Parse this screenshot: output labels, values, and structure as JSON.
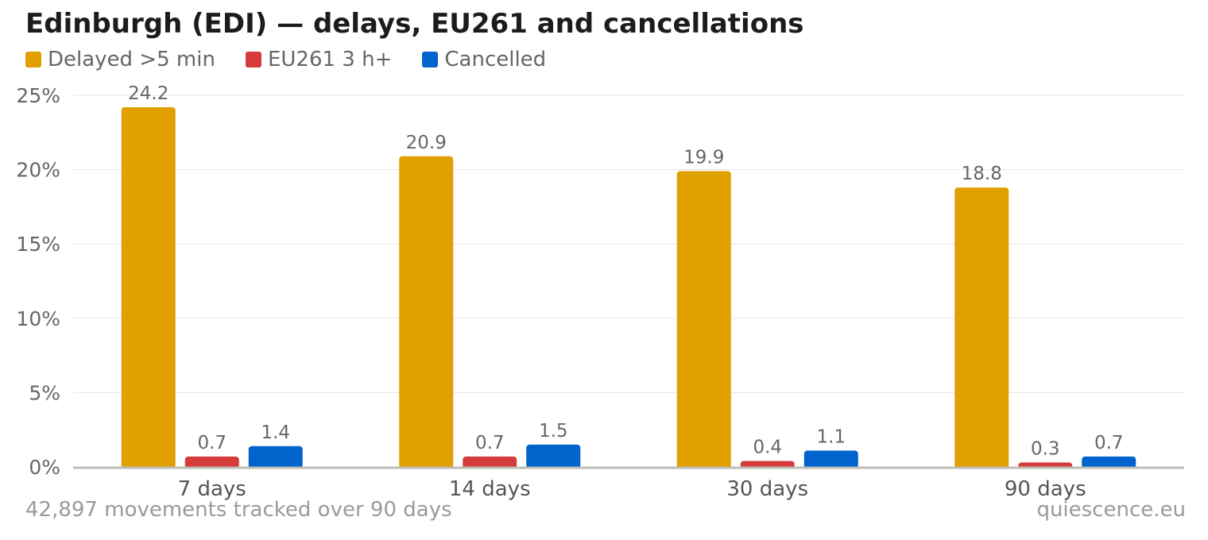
{
  "chart_data": {
    "type": "bar",
    "title": "Edinburgh (EDI) — delays, EU261 and cancellations",
    "categories": [
      "7 days",
      "14 days",
      "30 days",
      "90 days"
    ],
    "series": [
      {
        "name": "Delayed >5 min",
        "color": "#E0A000",
        "values": [
          24.2,
          20.9,
          19.9,
          18.8
        ],
        "labels": [
          "24.2",
          "20.9",
          "19.9",
          "18.8"
        ]
      },
      {
        "name": "EU261 3 h+",
        "color": "#D63B3B",
        "values": [
          0.7,
          0.7,
          0.4,
          0.3
        ],
        "labels": [
          "0.7",
          "0.7",
          "0.4",
          "0.3"
        ]
      },
      {
        "name": "Cancelled",
        "color": "#0064CC",
        "values": [
          1.4,
          1.5,
          1.1,
          0.7
        ],
        "labels": [
          "1.4",
          "1.5",
          "1.1",
          "0.7"
        ]
      }
    ],
    "y_ticks": [
      0,
      5,
      10,
      15,
      20,
      25
    ],
    "y_tick_labels": [
      "0%",
      "5%",
      "10%",
      "15%",
      "20%",
      "25%"
    ],
    "ylim": [
      0,
      25
    ],
    "legend_position": "top-left",
    "grid": true
  },
  "footer": {
    "note": "42,897 movements tracked over 90 days",
    "source": "quiescence.eu"
  }
}
